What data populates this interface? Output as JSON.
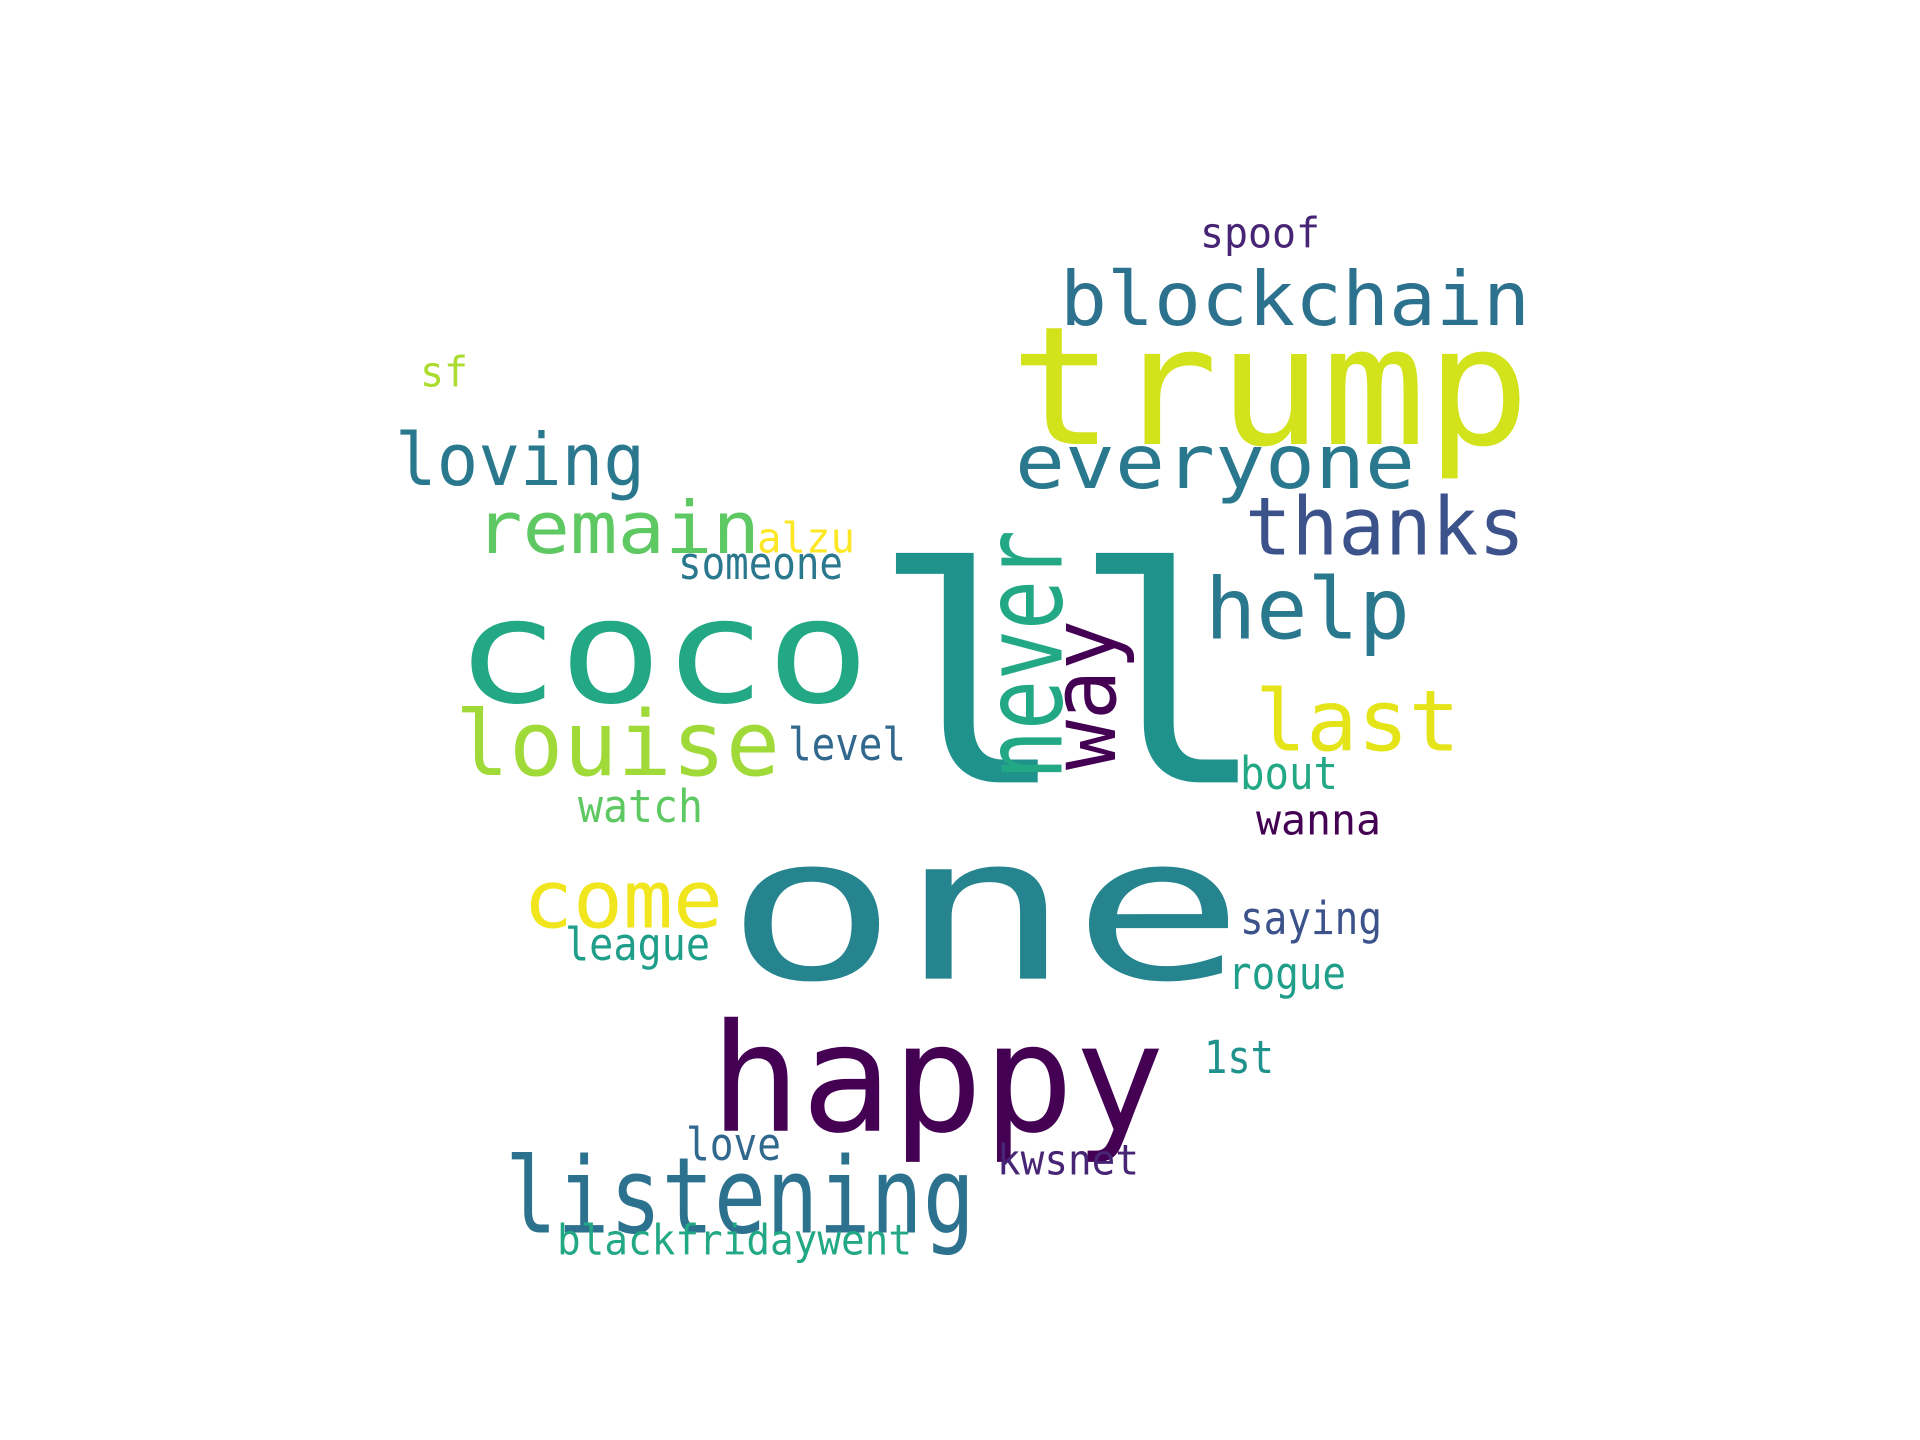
{
  "wordcloud": {
    "words": [
      {
        "text": "ll",
        "color": "#20928c"
      },
      {
        "text": "one",
        "color": "#25848e"
      },
      {
        "text": "trump",
        "color": "#d2e21b"
      },
      {
        "text": "happy",
        "color": "#440154"
      },
      {
        "text": "coco",
        "color": "#22a884"
      },
      {
        "text": "blockchain",
        "color": "#2c728e"
      },
      {
        "text": "everyone",
        "color": "#2a788e"
      },
      {
        "text": "listening",
        "color": "#2c728e"
      },
      {
        "text": "louise",
        "color": "#a0da39"
      },
      {
        "text": "remain",
        "color": "#5ec962"
      },
      {
        "text": "loving",
        "color": "#2a788e"
      },
      {
        "text": "thanks",
        "color": "#3b528b"
      },
      {
        "text": "help",
        "color": "#2a788e"
      },
      {
        "text": "last",
        "color": "#e5e419"
      },
      {
        "text": "come",
        "color": "#f1e51d"
      },
      {
        "text": "never",
        "color": "#22a884"
      },
      {
        "text": "way",
        "color": "#440154"
      },
      {
        "text": "spoof",
        "color": "#482475"
      },
      {
        "text": "sf",
        "color": "#addc30"
      },
      {
        "text": "alzu",
        "color": "#fde725"
      },
      {
        "text": "someone",
        "color": "#2a788e"
      },
      {
        "text": "level",
        "color": "#31688e"
      },
      {
        "text": "watch",
        "color": "#5ec962"
      },
      {
        "text": "bout",
        "color": "#22a884"
      },
      {
        "text": "wanna",
        "color": "#440154"
      },
      {
        "text": "saying",
        "color": "#3b528b"
      },
      {
        "text": "league",
        "color": "#1f9e89"
      },
      {
        "text": "rogue",
        "color": "#1f9e89"
      },
      {
        "text": "1st",
        "color": "#20928c"
      },
      {
        "text": "love",
        "color": "#31688e"
      },
      {
        "text": "kwsnet",
        "color": "#482475"
      },
      {
        "text": "blackfridaywent",
        "color": "#22a884"
      }
    ]
  }
}
